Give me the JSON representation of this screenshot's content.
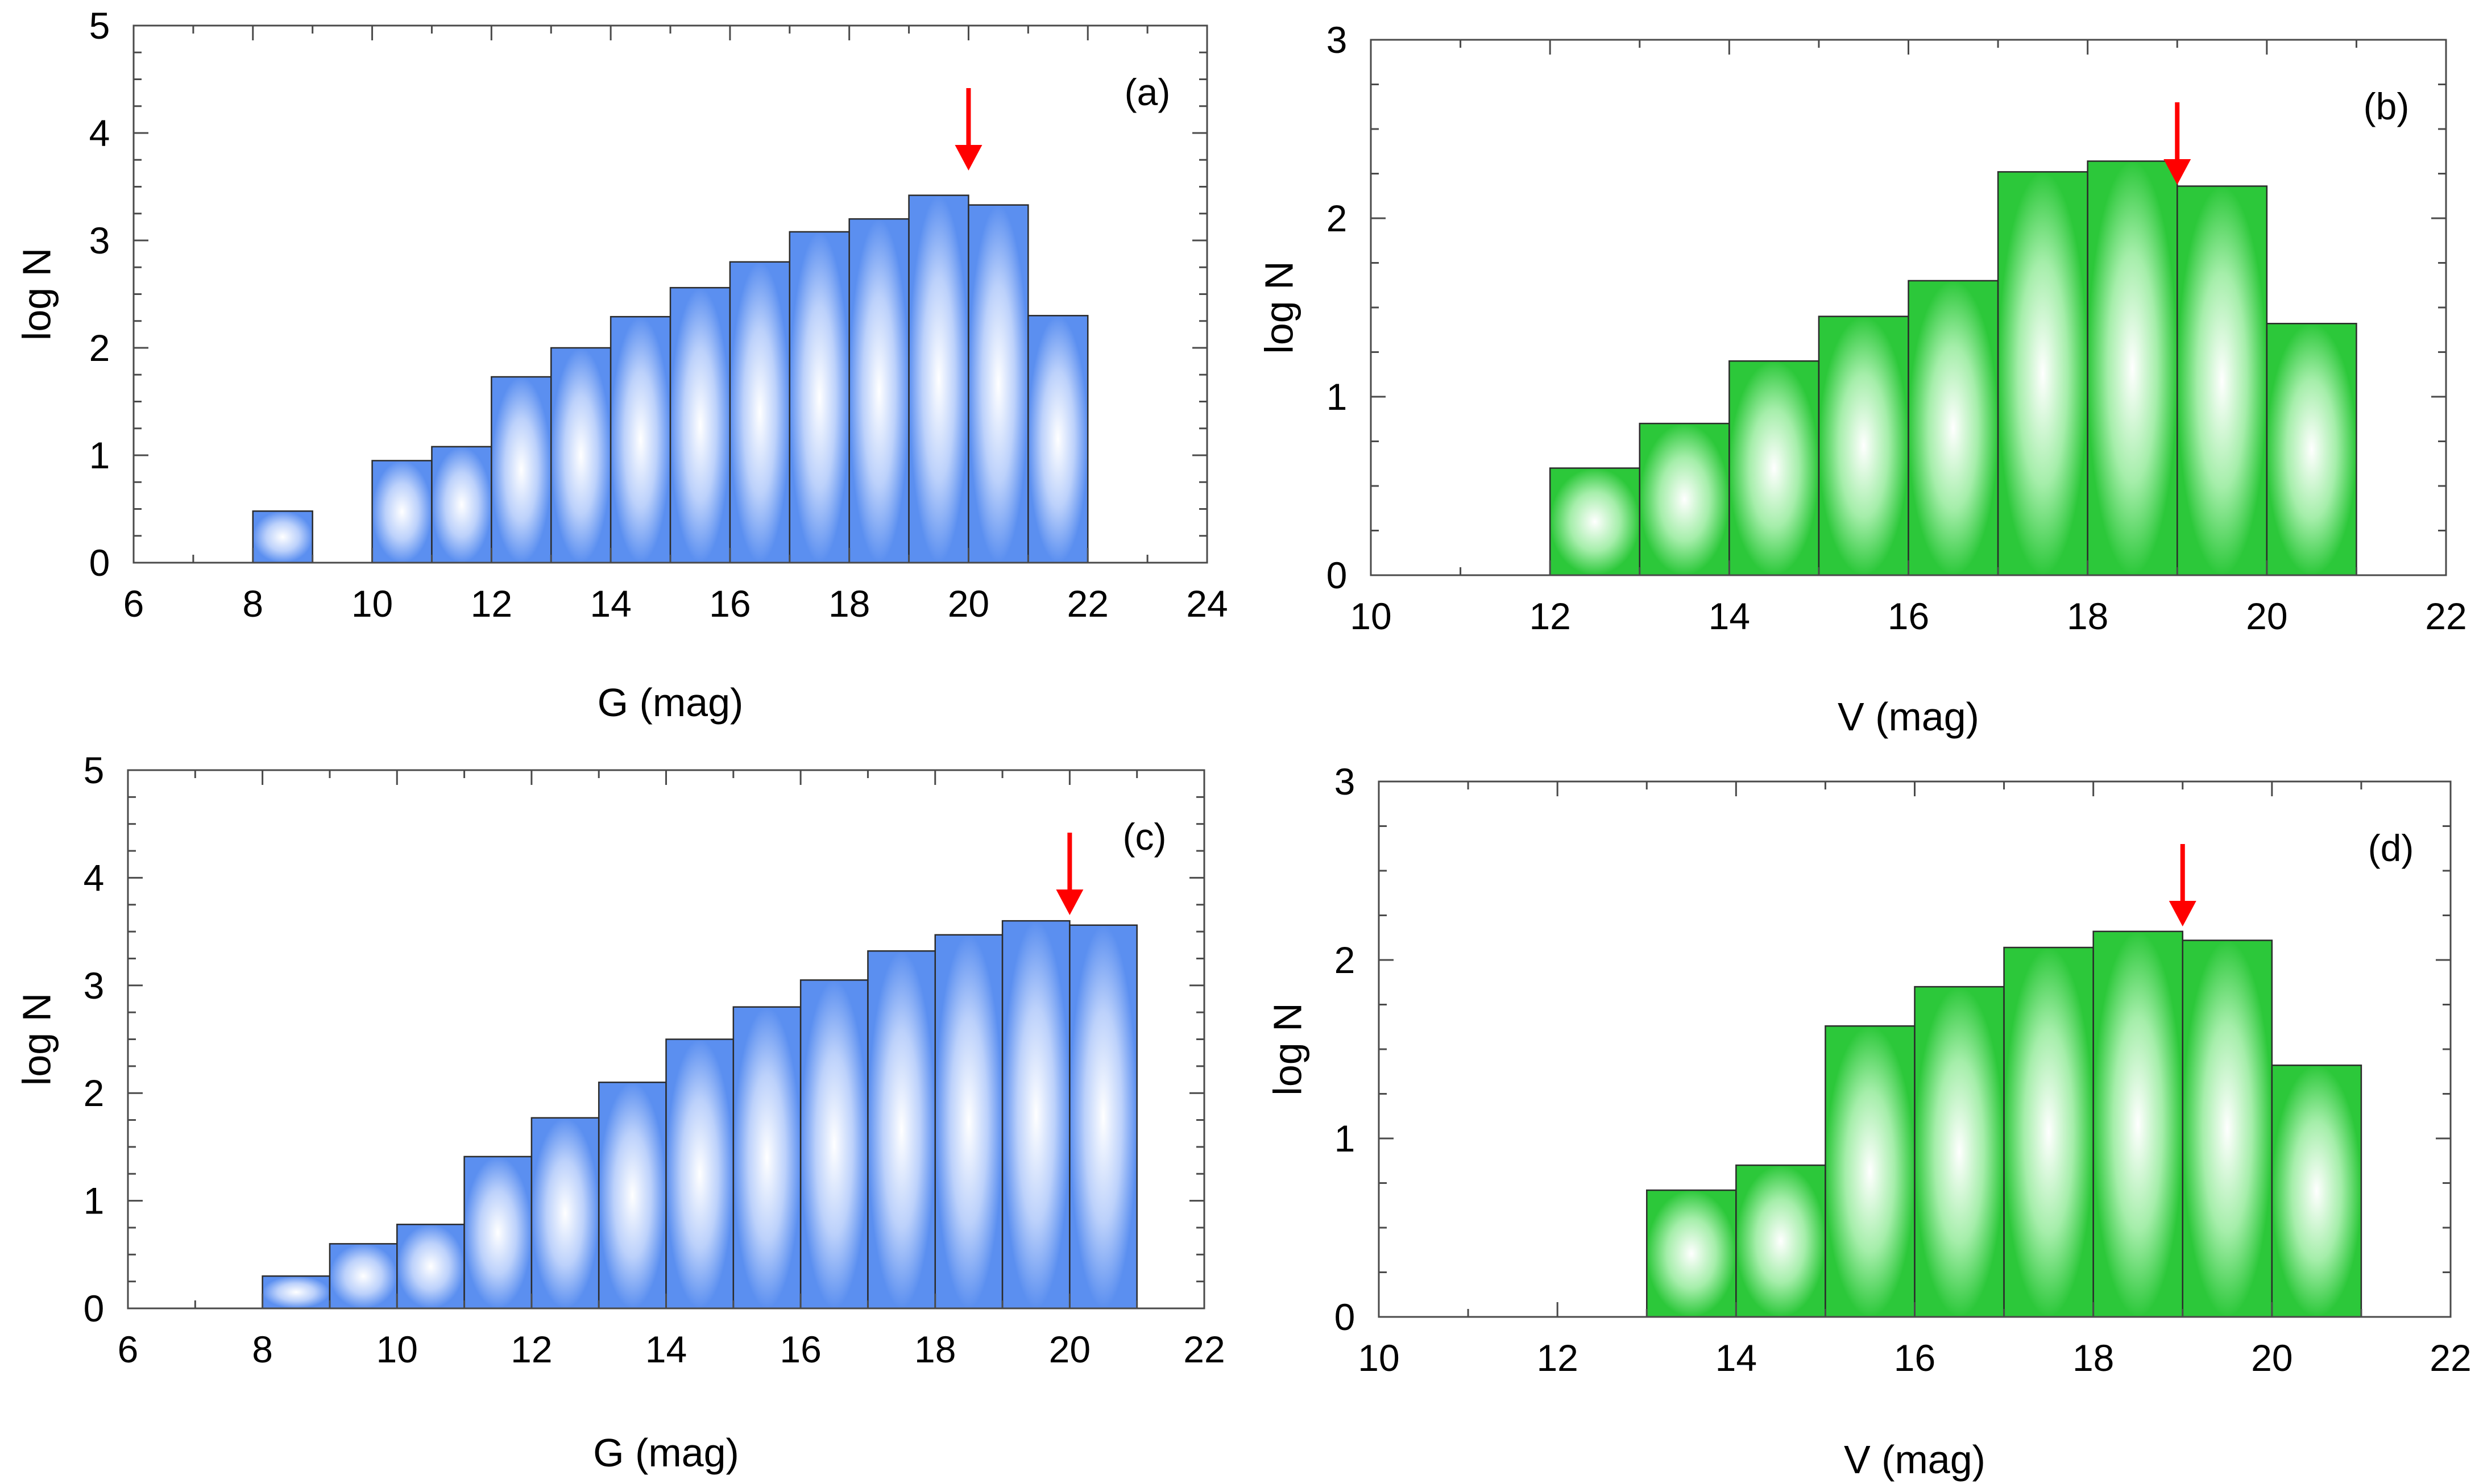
{
  "chart_data": [
    {
      "id": "a",
      "type": "bar",
      "panel_label": "(a)",
      "xlabel": "G (mag)",
      "ylabel": "log N",
      "xlim": [
        6,
        24
      ],
      "ylim": [
        0,
        5
      ],
      "xticks": [
        6,
        8,
        10,
        12,
        14,
        16,
        18,
        20,
        22,
        24
      ],
      "yticks": [
        0,
        1,
        2,
        3,
        4,
        5
      ],
      "bin_width": 1,
      "bins": [
        {
          "x0": 8,
          "value": 0.48
        },
        {
          "x0": 10,
          "value": 0.95
        },
        {
          "x0": 11,
          "value": 1.08
        },
        {
          "x0": 12,
          "value": 1.73
        },
        {
          "x0": 13,
          "value": 2.0
        },
        {
          "x0": 14,
          "value": 2.29
        },
        {
          "x0": 15,
          "value": 2.56
        },
        {
          "x0": 16,
          "value": 2.8
        },
        {
          "x0": 17,
          "value": 3.08
        },
        {
          "x0": 18,
          "value": 3.2
        },
        {
          "x0": 19,
          "value": 3.42
        },
        {
          "x0": 20,
          "value": 3.33
        },
        {
          "x0": 21,
          "value": 2.3
        }
      ],
      "arrow_x": 20,
      "bar_color": "#5b8ff0",
      "arrow_color": "#ff0000"
    },
    {
      "id": "b",
      "type": "bar",
      "panel_label": "(b)",
      "xlabel": "V (mag)",
      "ylabel": "log N",
      "xlim": [
        10,
        22
      ],
      "ylim": [
        0,
        3
      ],
      "xticks": [
        10,
        12,
        14,
        16,
        18,
        20,
        22
      ],
      "yticks": [
        0,
        1,
        2,
        3
      ],
      "bin_width": 1,
      "bins": [
        {
          "x0": 12,
          "value": 0.6
        },
        {
          "x0": 13,
          "value": 0.85
        },
        {
          "x0": 14,
          "value": 1.2
        },
        {
          "x0": 15,
          "value": 1.45
        },
        {
          "x0": 16,
          "value": 1.65
        },
        {
          "x0": 17,
          "value": 2.26
        },
        {
          "x0": 18,
          "value": 2.32
        },
        {
          "x0": 19,
          "value": 2.18
        },
        {
          "x0": 20,
          "value": 1.41
        }
      ],
      "arrow_x": 19,
      "bar_color": "#2cc83a",
      "arrow_color": "#ff0000"
    },
    {
      "id": "c",
      "type": "bar",
      "panel_label": "(c)",
      "xlabel": "G (mag)",
      "ylabel": "log N",
      "xlim": [
        6,
        22
      ],
      "ylim": [
        0,
        5
      ],
      "xticks": [
        6,
        8,
        10,
        12,
        14,
        16,
        18,
        20,
        22
      ],
      "yticks": [
        0,
        1,
        2,
        3,
        4,
        5
      ],
      "bin_width": 1,
      "bins": [
        {
          "x0": 8,
          "value": 0.3
        },
        {
          "x0": 9,
          "value": 0.6
        },
        {
          "x0": 10,
          "value": 0.78
        },
        {
          "x0": 11,
          "value": 1.41
        },
        {
          "x0": 12,
          "value": 1.77
        },
        {
          "x0": 13,
          "value": 2.1
        },
        {
          "x0": 14,
          "value": 2.5
        },
        {
          "x0": 15,
          "value": 2.8
        },
        {
          "x0": 16,
          "value": 3.05
        },
        {
          "x0": 17,
          "value": 3.32
        },
        {
          "x0": 18,
          "value": 3.47
        },
        {
          "x0": 19,
          "value": 3.6
        },
        {
          "x0": 20,
          "value": 3.56
        }
      ],
      "arrow_x": 20,
      "bar_color": "#5b8ff0",
      "arrow_color": "#ff0000"
    },
    {
      "id": "d",
      "type": "bar",
      "panel_label": "(d)",
      "xlabel": "V (mag)",
      "ylabel": "log N",
      "xlim": [
        10,
        22
      ],
      "ylim": [
        0,
        3
      ],
      "xticks": [
        10,
        12,
        14,
        16,
        18,
        20,
        22
      ],
      "yticks": [
        0,
        1,
        2,
        3
      ],
      "bin_width": 1,
      "bins": [
        {
          "x0": 13,
          "value": 0.71
        },
        {
          "x0": 14,
          "value": 0.85
        },
        {
          "x0": 15,
          "value": 1.63
        },
        {
          "x0": 16,
          "value": 1.85
        },
        {
          "x0": 17,
          "value": 2.07
        },
        {
          "x0": 18,
          "value": 2.16
        },
        {
          "x0": 19,
          "value": 2.11
        },
        {
          "x0": 20,
          "value": 1.41
        }
      ],
      "arrow_x": 19,
      "bar_color": "#2cc83a",
      "arrow_color": "#ff0000"
    }
  ]
}
